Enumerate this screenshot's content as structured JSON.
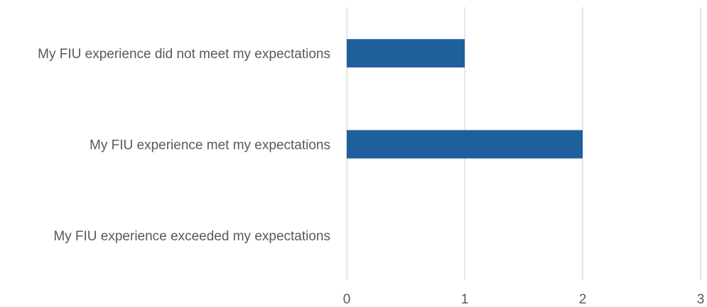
{
  "chart_data": {
    "type": "bar",
    "orientation": "horizontal",
    "title": "",
    "xlabel": "",
    "ylabel": "",
    "categories": [
      "My FIU experience did not meet my expectations",
      "My FIU experience met my expectations",
      "My FIU experience exceeded my expectations"
    ],
    "values": [
      1,
      2,
      0
    ],
    "xlim": [
      0,
      3
    ],
    "x_ticks": [
      "0",
      "1",
      "2",
      "3"
    ],
    "grid": "vertical",
    "legend": "none",
    "colors": {
      "bar": "#1f5f9b",
      "grid": "#d9d9d9",
      "text": "#595959"
    }
  }
}
